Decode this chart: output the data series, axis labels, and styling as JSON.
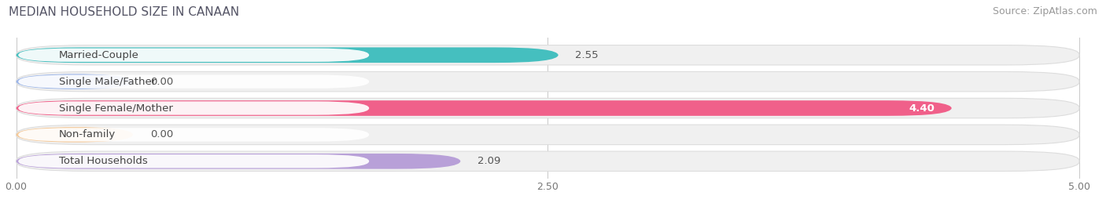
{
  "title": "MEDIAN HOUSEHOLD SIZE IN CANAAN",
  "source": "Source: ZipAtlas.com",
  "categories": [
    "Married-Couple",
    "Single Male/Father",
    "Single Female/Mother",
    "Non-family",
    "Total Households"
  ],
  "values": [
    2.55,
    0.0,
    4.4,
    0.0,
    2.09
  ],
  "bar_colors": [
    "#45bfbf",
    "#9ab4e8",
    "#f0608a",
    "#f5c896",
    "#b8a0d8"
  ],
  "xlim": [
    0,
    5.0
  ],
  "xticks": [
    0.0,
    2.5,
    5.0
  ],
  "xtick_labels": [
    "0.00",
    "2.50",
    "5.00"
  ],
  "title_fontsize": 11,
  "source_fontsize": 9,
  "label_fontsize": 9.5,
  "value_fontsize": 9.5,
  "background_color": "#ffffff",
  "grid_color": "#cccccc",
  "bar_bg_color": "#f0f0f0",
  "bar_border_color": "#dddddd",
  "zero_bar_width": 0.55
}
